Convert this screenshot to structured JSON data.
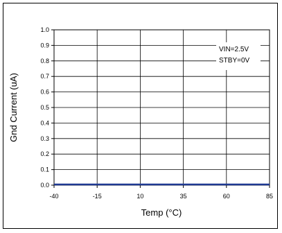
{
  "chart_data": {
    "type": "line",
    "xlabel": "Temp (°C)",
    "ylabel": "Gnd Current (uA)",
    "x_ticks": [
      "-40",
      "-15",
      "10",
      "35",
      "60",
      "85"
    ],
    "y_ticks": [
      "0.0",
      "0.1",
      "0.2",
      "0.3",
      "0.4",
      "0.5",
      "0.6",
      "0.7",
      "0.8",
      "0.9",
      "1.0"
    ],
    "xlim": [
      -40,
      85
    ],
    "ylim": [
      0,
      1.0
    ],
    "grid": true,
    "series": [
      {
        "x": [
          -40,
          -15,
          10,
          35,
          60,
          85
        ],
        "y": [
          0,
          0,
          0,
          0,
          0,
          0
        ],
        "color": "#1f3a93"
      }
    ],
    "annotations": [
      "VIN=2.5V",
      "STBY=0V"
    ]
  }
}
